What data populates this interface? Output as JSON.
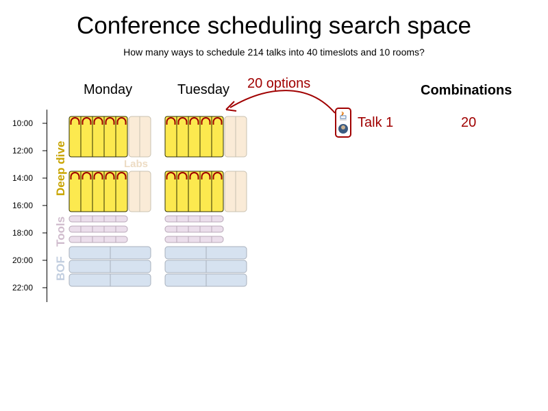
{
  "title": "Conference scheduling search space",
  "subtitle": "How many ways to schedule 214 talks into 40 timeslots and 10 rooms?",
  "days": [
    "Monday",
    "Tuesday"
  ],
  "time_ticks": [
    "10:00",
    "12:00",
    "14:00",
    "16:00",
    "18:00",
    "20:00",
    "22:00"
  ],
  "categories": {
    "deep_dive": "Deep dive",
    "labs": "Labs",
    "tools": "Tools",
    "bof": "BOF"
  },
  "arrow_label": "20 options",
  "talk": {
    "label": "Talk 1",
    "icon": "talk-card-icon"
  },
  "combinations": {
    "header": "Combinations",
    "value": "20"
  },
  "colors": {
    "deep_dive": "#fce94f",
    "deep_dive_border": "#2e2e00",
    "arc": "#a00000",
    "labs": "#faebd7",
    "tools": "#ebdeeb",
    "bof": "#d6e2f0",
    "accent": "#a00000"
  }
}
